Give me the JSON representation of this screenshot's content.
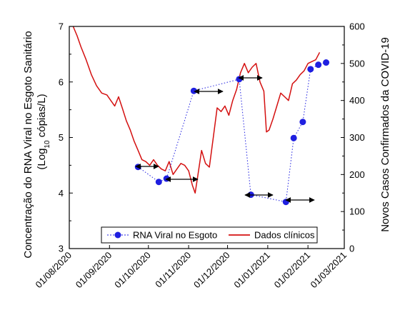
{
  "chart_data": {
    "type": "line",
    "left_axis": {
      "label_main": "Concentração do RNA Viral no Esgoto Sanitário",
      "label_sub_prefix": "(Log",
      "label_sub_subscript": "10",
      "label_sub_suffix": " cópias/L)",
      "ylim": [
        3,
        7
      ],
      "ticks": [
        "3",
        "4",
        "5",
        "6",
        "7"
      ]
    },
    "right_axis": {
      "label": "Novos Casos Confirmados da COVID-19",
      "ylim": [
        0,
        600
      ],
      "ticks": [
        "0",
        "100",
        "200",
        "300",
        "400",
        "500",
        "600"
      ]
    },
    "x_axis": {
      "range": [
        "2020-08-01",
        "2021-03-01"
      ],
      "ticks": [
        "01/08/2020",
        "01/09/2020",
        "01/10/2020",
        "01/11/2020",
        "01/12/2020",
        "01/01/2021",
        "01/02/2021",
        "01/03/2021"
      ]
    },
    "legend": {
      "placement": "bottom-center",
      "entries": [
        "RNA Viral no Esgoto",
        "Dados clínicos"
      ]
    },
    "series": [
      {
        "name": "RNA Viral no Esgoto",
        "axis": "left",
        "style": "dotted-markers",
        "color": "#1f1fe0",
        "x": [
          "2020-09-23",
          "2020-10-09",
          "2020-10-15",
          "2020-11-05",
          "2020-12-10",
          "2020-12-19",
          "2021-01-15",
          "2021-01-21",
          "2021-01-28",
          "2021-02-03",
          "2021-02-09",
          "2021-02-15"
        ],
        "y": [
          4.47,
          4.2,
          4.26,
          5.84,
          6.05,
          3.97,
          3.84,
          4.99,
          5.28,
          6.23,
          6.31,
          6.35
        ]
      },
      {
        "name": "Dados clínicos",
        "axis": "right",
        "style": "line",
        "color": "#d41010",
        "x": [
          "2020-08-04",
          "2020-08-07",
          "2020-08-10",
          "2020-08-14",
          "2020-08-18",
          "2020-08-22",
          "2020-08-26",
          "2020-08-30",
          "2020-09-02",
          "2020-09-05",
          "2020-09-08",
          "2020-09-11",
          "2020-09-14",
          "2020-09-17",
          "2020-09-20",
          "2020-09-23",
          "2020-09-26",
          "2020-09-29",
          "2020-10-02",
          "2020-10-05",
          "2020-10-08",
          "2020-10-11",
          "2020-10-14",
          "2020-10-17",
          "2020-10-20",
          "2020-10-23",
          "2020-10-26",
          "2020-10-29",
          "2020-11-01",
          "2020-11-04",
          "2020-11-06",
          "2020-11-08",
          "2020-11-11",
          "2020-11-14",
          "2020-11-17",
          "2020-11-20",
          "2020-11-23",
          "2020-11-26",
          "2020-11-29",
          "2020-12-02",
          "2020-12-05",
          "2020-12-08",
          "2020-12-11",
          "2020-12-14",
          "2020-12-17",
          "2020-12-20",
          "2020-12-23",
          "2020-12-26",
          "2020-12-29",
          "2020-12-31",
          "2021-01-02",
          "2021-01-05",
          "2021-01-08",
          "2021-01-11",
          "2021-01-14",
          "2021-01-17",
          "2021-01-20",
          "2021-01-23",
          "2021-01-26",
          "2021-01-29",
          "2021-02-01",
          "2021-02-04",
          "2021-02-07",
          "2021-02-10"
        ],
        "y": [
          600,
          575,
          545,
          510,
          470,
          440,
          420,
          415,
          400,
          385,
          410,
          378,
          345,
          320,
          290,
          265,
          240,
          235,
          225,
          240,
          225,
          215,
          210,
          235,
          200,
          215,
          230,
          225,
          210,
          170,
          150,
          195,
          265,
          230,
          220,
          300,
          380,
          370,
          385,
          360,
          400,
          430,
          475,
          500,
          475,
          490,
          500,
          450,
          425,
          315,
          320,
          350,
          385,
          420,
          410,
          400,
          445,
          455,
          470,
          480,
          500,
          505,
          510,
          530
        ]
      }
    ],
    "annotations": {
      "type": "double-headed-arrow",
      "count": 6
    }
  }
}
